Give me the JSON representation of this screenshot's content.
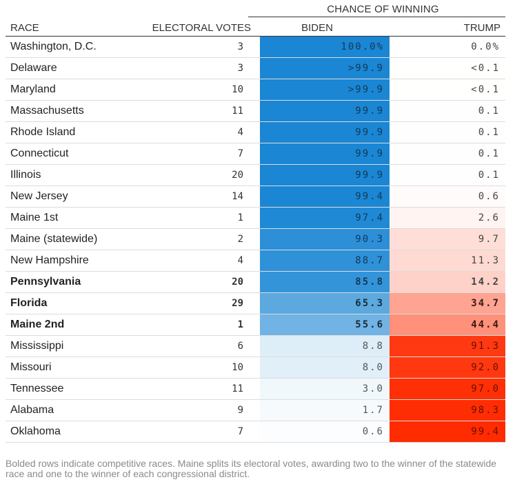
{
  "chart_data": {
    "type": "table",
    "super_header": "CHANCE OF WINNING",
    "columns": {
      "race": "RACE",
      "ev": "ELECTORAL VOTES",
      "biden": "BIDEN",
      "trump": "TRUMP"
    },
    "colors": {
      "biden": "#1a86d4",
      "trump": "#ff2a00"
    },
    "rows": [
      {
        "race": "Washington, D.C.",
        "ev": "3",
        "biden": "100.0%",
        "trump": "0.0%",
        "biden_p": 100.0,
        "trump_p": 0.0,
        "bold": false
      },
      {
        "race": "Delaware",
        "ev": "3",
        "biden": ">99.9",
        "trump": "<0.1",
        "biden_p": 99.95,
        "trump_p": 0.05,
        "bold": false
      },
      {
        "race": "Maryland",
        "ev": "10",
        "biden": ">99.9",
        "trump": "<0.1",
        "biden_p": 99.95,
        "trump_p": 0.05,
        "bold": false
      },
      {
        "race": "Massachusetts",
        "ev": "11",
        "biden": "99.9",
        "trump": "0.1",
        "biden_p": 99.9,
        "trump_p": 0.1,
        "bold": false
      },
      {
        "race": "Rhode Island",
        "ev": "4",
        "biden": "99.9",
        "trump": "0.1",
        "biden_p": 99.9,
        "trump_p": 0.1,
        "bold": false
      },
      {
        "race": "Connecticut",
        "ev": "7",
        "biden": "99.9",
        "trump": "0.1",
        "biden_p": 99.9,
        "trump_p": 0.1,
        "bold": false
      },
      {
        "race": "Illinois",
        "ev": "20",
        "biden": "99.9",
        "trump": "0.1",
        "biden_p": 99.9,
        "trump_p": 0.1,
        "bold": false
      },
      {
        "race": "New Jersey",
        "ev": "14",
        "biden": "99.4",
        "trump": "0.6",
        "biden_p": 99.4,
        "trump_p": 0.6,
        "bold": false
      },
      {
        "race": "Maine 1st",
        "ev": "1",
        "biden": "97.4",
        "trump": "2.6",
        "biden_p": 97.4,
        "trump_p": 2.6,
        "bold": false
      },
      {
        "race": "Maine (statewide)",
        "ev": "2",
        "biden": "90.3",
        "trump": "9.7",
        "biden_p": 90.3,
        "trump_p": 9.7,
        "bold": false
      },
      {
        "race": "New Hampshire",
        "ev": "4",
        "biden": "88.7",
        "trump": "11.3",
        "biden_p": 88.7,
        "trump_p": 11.3,
        "bold": false
      },
      {
        "race": "Pennsylvania",
        "ev": "20",
        "biden": "85.8",
        "trump": "14.2",
        "biden_p": 85.8,
        "trump_p": 14.2,
        "bold": true
      },
      {
        "race": "Florida",
        "ev": "29",
        "biden": "65.3",
        "trump": "34.7",
        "biden_p": 65.3,
        "trump_p": 34.7,
        "bold": true
      },
      {
        "race": "Maine 2nd",
        "ev": "1",
        "biden": "55.6",
        "trump": "44.4",
        "biden_p": 55.6,
        "trump_p": 44.4,
        "bold": true
      },
      {
        "race": "Mississippi",
        "ev": "6",
        "biden": "8.8",
        "trump": "91.3",
        "biden_p": 8.8,
        "trump_p": 91.3,
        "bold": false
      },
      {
        "race": "Missouri",
        "ev": "10",
        "biden": "8.0",
        "trump": "92.0",
        "biden_p": 8.0,
        "trump_p": 92.0,
        "bold": false
      },
      {
        "race": "Tennessee",
        "ev": "11",
        "biden": "3.0",
        "trump": "97.0",
        "biden_p": 3.0,
        "trump_p": 97.0,
        "bold": false
      },
      {
        "race": "Alabama",
        "ev": "9",
        "biden": "1.7",
        "trump": "98.3",
        "biden_p": 1.7,
        "trump_p": 98.3,
        "bold": false
      },
      {
        "race": "Oklahoma",
        "ev": "7",
        "biden": "0.6",
        "trump": "99.4",
        "biden_p": 0.6,
        "trump_p": 99.4,
        "bold": false
      }
    ],
    "note": "Bolded rows indicate competitive races. Maine splits its electoral votes, awarding two to the winner of the statewide race and one to the winner of each congressional district."
  }
}
